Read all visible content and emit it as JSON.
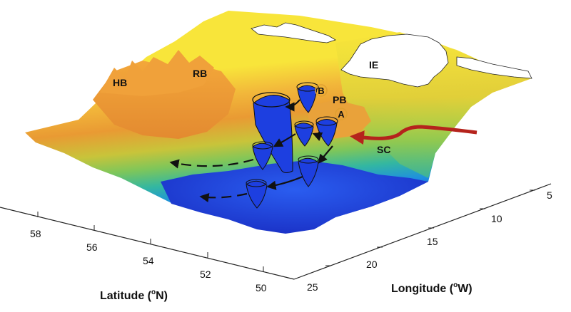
{
  "regions": {
    "hb": "HB",
    "rb": "RB",
    "pb": "PB",
    "ie": "IE",
    "sc": "SC"
  },
  "markers": {
    "a": "A",
    "b": "B"
  },
  "latitude_axis": {
    "label": "Latitude (",
    "label_sup": "o",
    "label_tail": "N)",
    "ticks": [
      "58",
      "56",
      "54",
      "52",
      "50"
    ]
  },
  "longitude_axis": {
    "label": "Longitude (",
    "label_sup": "o",
    "label_tail": "W)",
    "ticks": [
      "5",
      "10",
      "15",
      "20",
      "25"
    ]
  },
  "colors": {
    "current": "#b5231c",
    "eddy": "#1d3fe0",
    "land": "#ffffff",
    "deep": "#1f3fd6",
    "shallow": "#f7e43a"
  }
}
